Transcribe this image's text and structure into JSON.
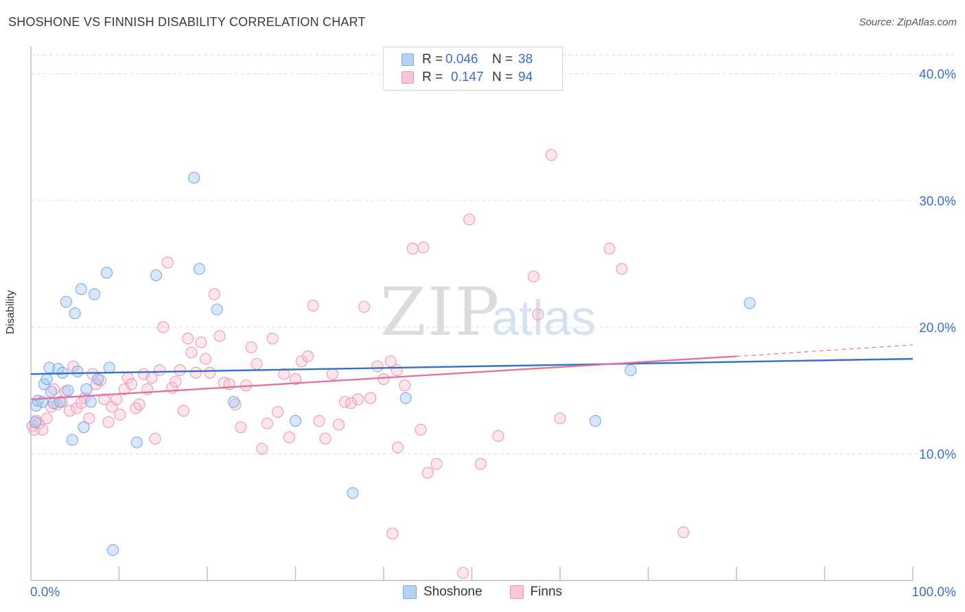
{
  "header": {
    "title": "SHOSHONE VS FINNISH DISABILITY CORRELATION CHART",
    "source": "Source: ZipAtlas.com"
  },
  "legend": {
    "rows": [
      {
        "r_label": "R =",
        "r_value": "0.046",
        "n_label": "N =",
        "n_value": "38"
      },
      {
        "r_label": "R =",
        "r_value": "0.147",
        "n_label": "N =",
        "n_value": "94"
      }
    ]
  },
  "bottom_legend": [
    "Shoshone",
    "Finns"
  ],
  "watermark": {
    "zip": "ZIP",
    "atlas": "atlas"
  },
  "chart_data": {
    "type": "scatter",
    "title": "SHOSHONE VS FINNISH DISABILITY CORRELATION CHART",
    "ylabel": "Disability",
    "xlabel": "",
    "xlim": [
      0,
      100
    ],
    "ylim": [
      0,
      41.5
    ],
    "x_tick_labels": [
      "0.0%",
      "100.0%"
    ],
    "y_ticks": [
      10,
      20,
      30,
      40
    ],
    "y_tick_labels": [
      "10.0%",
      "20.0%",
      "30.0%",
      "40.0%"
    ],
    "grid": "horizontal dashed",
    "legend_position": "top-center",
    "colors": {
      "shoshone": "#7aaae6",
      "finns": "#ee96b6",
      "shoshone_line": "#2f6fce",
      "finns_line": "#e5709a",
      "axis_text": "#3b6fc4"
    },
    "series": [
      {
        "name": "Shoshone",
        "r": 0.046,
        "n": 38,
        "trend": {
          "x": [
            0,
            100
          ],
          "y": [
            16.3,
            17.5
          ]
        },
        "points": [
          [
            0.5,
            12.5
          ],
          [
            0.6,
            13.8
          ],
          [
            0.8,
            14.2
          ],
          [
            1.3,
            14.1
          ],
          [
            1.5,
            15.5
          ],
          [
            1.8,
            15.9
          ],
          [
            2.1,
            16.8
          ],
          [
            2.3,
            14.9
          ],
          [
            2.6,
            14.0
          ],
          [
            3.1,
            16.7
          ],
          [
            3.3,
            14.1
          ],
          [
            3.6,
            16.4
          ],
          [
            4.0,
            22.0
          ],
          [
            4.2,
            15.0
          ],
          [
            4.7,
            11.1
          ],
          [
            5.0,
            21.1
          ],
          [
            5.3,
            16.5
          ],
          [
            5.7,
            23.0
          ],
          [
            6.0,
            12.1
          ],
          [
            6.3,
            15.1
          ],
          [
            6.8,
            14.1
          ],
          [
            7.2,
            22.6
          ],
          [
            7.6,
            15.9
          ],
          [
            8.6,
            24.3
          ],
          [
            8.9,
            16.8
          ],
          [
            9.3,
            2.4
          ],
          [
            12.0,
            10.9
          ],
          [
            14.2,
            24.1
          ],
          [
            18.5,
            31.8
          ],
          [
            19.1,
            24.6
          ],
          [
            21.1,
            21.4
          ],
          [
            23.0,
            14.1
          ],
          [
            30.0,
            12.6
          ],
          [
            36.5,
            6.9
          ],
          [
            42.5,
            14.4
          ],
          [
            64.0,
            12.6
          ],
          [
            68.0,
            16.6
          ],
          [
            81.5,
            21.9
          ]
        ]
      },
      {
        "name": "Finns",
        "r": 0.147,
        "n": 94,
        "trend": {
          "x": [
            0,
            80
          ],
          "y": [
            14.3,
            17.7
          ]
        },
        "trend_dashed": {
          "x": [
            80,
            100
          ],
          "y": [
            17.7,
            18.6
          ]
        },
        "points": [
          [
            0.2,
            12.2
          ],
          [
            0.4,
            11.9
          ],
          [
            0.6,
            12.6
          ],
          [
            0.9,
            12.4
          ],
          [
            1.3,
            11.9
          ],
          [
            1.8,
            12.8
          ],
          [
            2.3,
            13.7
          ],
          [
            2.6,
            15.1
          ],
          [
            3.0,
            13.9
          ],
          [
            3.5,
            14.1
          ],
          [
            3.9,
            14.9
          ],
          [
            4.4,
            13.4
          ],
          [
            4.8,
            16.9
          ],
          [
            5.2,
            13.6
          ],
          [
            5.7,
            14.0
          ],
          [
            6.1,
            14.4
          ],
          [
            6.6,
            12.8
          ],
          [
            7.0,
            16.3
          ],
          [
            7.4,
            15.5
          ],
          [
            7.9,
            15.8
          ],
          [
            8.3,
            14.3
          ],
          [
            8.8,
            12.5
          ],
          [
            9.2,
            13.7
          ],
          [
            9.7,
            14.3
          ],
          [
            10.1,
            13.1
          ],
          [
            10.6,
            15.1
          ],
          [
            11.0,
            16.0
          ],
          [
            11.4,
            15.5
          ],
          [
            11.9,
            13.6
          ],
          [
            12.3,
            13.9
          ],
          [
            12.8,
            16.3
          ],
          [
            13.2,
            15.1
          ],
          [
            13.7,
            16.0
          ],
          [
            14.1,
            11.2
          ],
          [
            14.6,
            16.6
          ],
          [
            15.0,
            20.0
          ],
          [
            15.5,
            25.1
          ],
          [
            16.0,
            15.2
          ],
          [
            16.4,
            15.7
          ],
          [
            16.9,
            16.6
          ],
          [
            17.3,
            13.4
          ],
          [
            17.8,
            19.1
          ],
          [
            18.2,
            18.0
          ],
          [
            18.7,
            16.4
          ],
          [
            19.3,
            18.8
          ],
          [
            19.8,
            17.5
          ],
          [
            20.3,
            16.4
          ],
          [
            20.8,
            22.6
          ],
          [
            21.4,
            19.3
          ],
          [
            21.9,
            15.6
          ],
          [
            22.5,
            15.5
          ],
          [
            23.2,
            13.9
          ],
          [
            23.8,
            12.1
          ],
          [
            24.4,
            15.4
          ],
          [
            25.0,
            18.4
          ],
          [
            25.6,
            17.1
          ],
          [
            26.2,
            10.4
          ],
          [
            26.8,
            12.4
          ],
          [
            27.4,
            19.1
          ],
          [
            28.0,
            13.3
          ],
          [
            28.7,
            16.3
          ],
          [
            29.3,
            11.3
          ],
          [
            30.0,
            15.9
          ],
          [
            30.7,
            17.3
          ],
          [
            31.4,
            17.7
          ],
          [
            32.0,
            21.7
          ],
          [
            32.7,
            12.6
          ],
          [
            33.4,
            11.2
          ],
          [
            34.2,
            16.3
          ],
          [
            34.9,
            12.3
          ],
          [
            35.6,
            14.1
          ],
          [
            36.3,
            14.0
          ],
          [
            37.1,
            14.3
          ],
          [
            37.8,
            21.6
          ],
          [
            38.5,
            14.4
          ],
          [
            39.3,
            16.9
          ],
          [
            40.0,
            15.9
          ],
          [
            40.8,
            17.3
          ],
          [
            41.5,
            16.6
          ],
          [
            42.4,
            15.4
          ],
          [
            43.3,
            26.2
          ],
          [
            44.2,
            11.9
          ],
          [
            45.0,
            8.5
          ],
          [
            46.0,
            9.2
          ],
          [
            49.0,
            0.6
          ],
          [
            49.7,
            28.5
          ],
          [
            51.0,
            9.2
          ],
          [
            53.0,
            11.4
          ],
          [
            57.0,
            24.0
          ],
          [
            57.5,
            21.0
          ],
          [
            59.0,
            33.6
          ],
          [
            60.0,
            12.8
          ],
          [
            65.6,
            26.2
          ],
          [
            67.0,
            24.6
          ]
        ]
      }
    ],
    "extra_points_finns": [
      [
        41.6,
        10.5
      ],
      [
        41.0,
        3.7
      ],
      [
        44.5,
        26.3
      ],
      [
        74.0,
        3.8
      ]
    ]
  }
}
